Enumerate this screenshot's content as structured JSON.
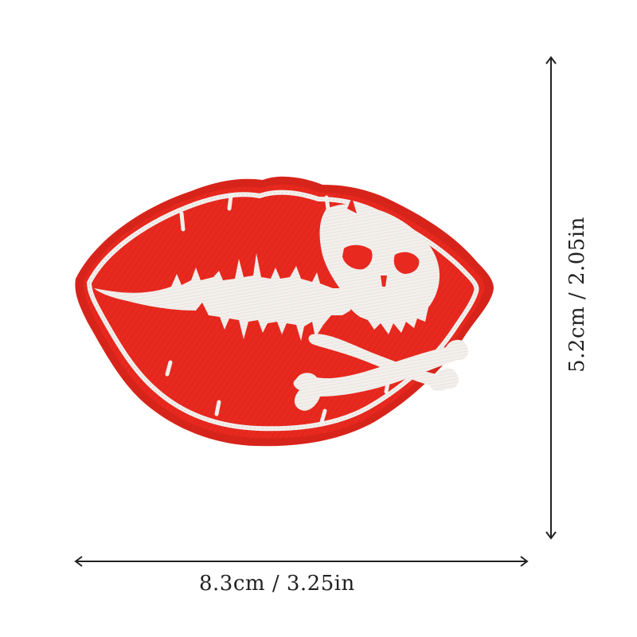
{
  "image": {
    "subject": "patch",
    "colors": {
      "patch_fill": "#e8291f",
      "patch_fill_dark": "#c41e17",
      "embroidery": "#f2efec",
      "embroidery_shadow": "#d9d2cc",
      "arrow": "#222222"
    }
  },
  "dimensions": {
    "width_label": "8.3cm  /  3.25in",
    "height_label": "5.2cm  /  2.05in"
  }
}
